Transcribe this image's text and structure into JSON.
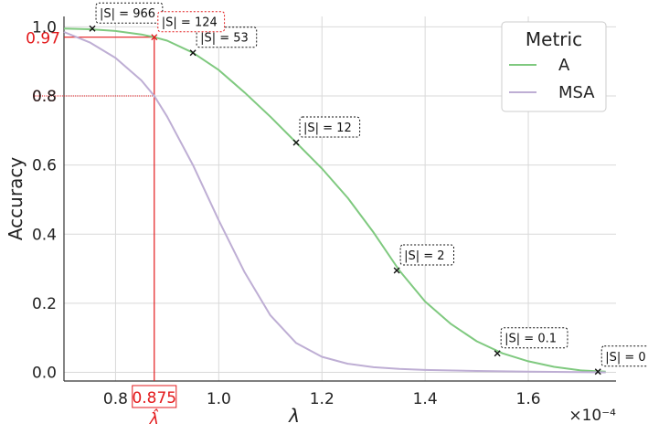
{
  "chart_data": {
    "type": "line",
    "xlabel": "λ",
    "ylabel": "Accuracy",
    "x_multiplier_label": "×10⁻⁴",
    "xlim": [
      0.7,
      1.77
    ],
    "ylim": [
      -0.025,
      1.03
    ],
    "x_ticks": [
      0.8,
      1.0,
      1.2,
      1.4,
      1.6
    ],
    "x_tick_labels": [
      "0.8",
      "1.0",
      "1.2",
      "1.4",
      "1.6"
    ],
    "y_ticks": [
      0.0,
      0.2,
      0.4,
      0.6,
      0.8,
      1.0
    ],
    "y_tick_labels": [
      "0.0",
      "0.2",
      "0.4",
      "0.6",
      "0.8",
      "1.0"
    ],
    "grid": true,
    "legend": {
      "title": "Metric",
      "position": "top-right"
    },
    "series": [
      {
        "name": "A",
        "color": "#7fc97f",
        "x": [
          0.7,
          0.75,
          0.8,
          0.85,
          0.875,
          0.9,
          0.95,
          1.0,
          1.05,
          1.1,
          1.15,
          1.2,
          1.25,
          1.3,
          1.35,
          1.4,
          1.45,
          1.5,
          1.55,
          1.6,
          1.65,
          1.7,
          1.75
        ],
        "values": [
          0.995,
          0.993,
          0.988,
          0.978,
          0.97,
          0.96,
          0.925,
          0.875,
          0.81,
          0.74,
          0.665,
          0.59,
          0.505,
          0.405,
          0.295,
          0.205,
          0.14,
          0.09,
          0.055,
          0.032,
          0.016,
          0.006,
          0.002
        ]
      },
      {
        "name": "MSA",
        "color": "#beaed4",
        "x": [
          0.7,
          0.75,
          0.8,
          0.85,
          0.875,
          0.9,
          0.95,
          1.0,
          1.05,
          1.1,
          1.15,
          1.2,
          1.25,
          1.3,
          1.35,
          1.4,
          1.5,
          1.6,
          1.7,
          1.75
        ],
        "values": [
          0.985,
          0.955,
          0.91,
          0.845,
          0.8,
          0.74,
          0.6,
          0.44,
          0.29,
          0.165,
          0.085,
          0.045,
          0.025,
          0.015,
          0.01,
          0.007,
          0.004,
          0.002,
          0.001,
          0.0
        ]
      }
    ],
    "annotations": [
      {
        "x": 0.755,
        "y": 0.995,
        "text": "|S| = 966",
        "color": "black"
      },
      {
        "x": 0.95,
        "y": 0.925,
        "text": "|S| = 53",
        "color": "black"
      },
      {
        "x": 1.15,
        "y": 0.665,
        "text": "|S| = 12",
        "color": "black"
      },
      {
        "x": 1.345,
        "y": 0.295,
        "text": "|S| = 2",
        "color": "black"
      },
      {
        "x": 1.54,
        "y": 0.055,
        "text": "|S| = 0.1",
        "color": "black"
      },
      {
        "x": 1.735,
        "y": 0.002,
        "text": "|S| = 0",
        "color": "black"
      },
      {
        "x": 0.875,
        "y": 0.97,
        "text": "|S| = 124",
        "color": "red"
      }
    ],
    "highlight": {
      "lambda_hat": 0.875,
      "lambda_hat_label": "0.875",
      "lambda_hat_symbol": "λ̂",
      "acc_value_label": "0.97",
      "msa_value_label": "0.8",
      "acc_value": 0.97,
      "msa_value": 0.8
    }
  }
}
